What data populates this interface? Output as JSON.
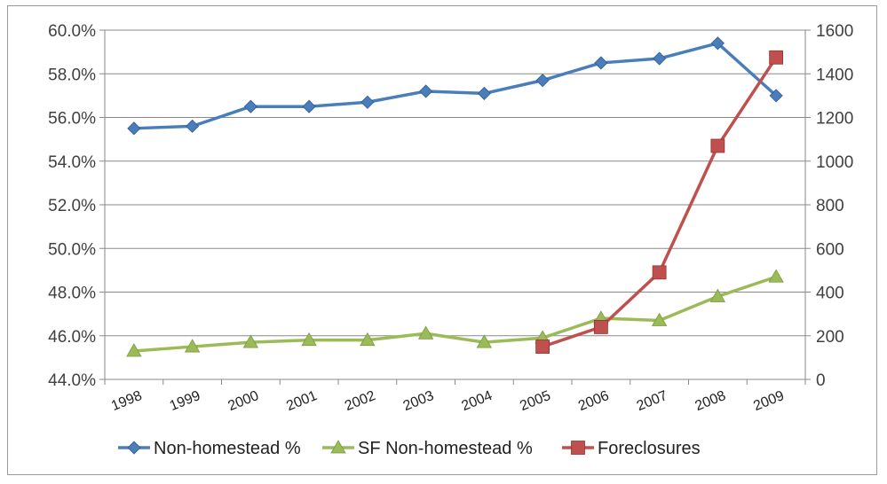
{
  "chart_data": {
    "type": "line",
    "categories": [
      "1998",
      "1999",
      "2000",
      "2001",
      "2002",
      "2003",
      "2004",
      "2005",
      "2006",
      "2007",
      "2008",
      "2009"
    ],
    "y_left": {
      "ylim": [
        44.0,
        60.0
      ],
      "ticks": [
        "44.0%",
        "46.0%",
        "48.0%",
        "50.0%",
        "52.0%",
        "54.0%",
        "56.0%",
        "58.0%",
        "60.0%"
      ]
    },
    "y_right": {
      "ylim": [
        0,
        1600
      ],
      "ticks": [
        "0",
        "200",
        "400",
        "600",
        "800",
        "1000",
        "1200",
        "1400",
        "1600"
      ]
    },
    "grid": true,
    "legend_position": "bottom",
    "series": [
      {
        "name": "Non-homestead %",
        "axis": "left",
        "color": "#4a7ebb",
        "marker": "diamond",
        "values": [
          55.5,
          55.6,
          56.5,
          56.5,
          56.7,
          57.2,
          57.1,
          57.7,
          58.5,
          58.7,
          59.4,
          57.0
        ]
      },
      {
        "name": "SF Non-homestead %",
        "axis": "left",
        "color": "#9bbb59",
        "marker": "triangle",
        "values": [
          45.3,
          45.5,
          45.7,
          45.8,
          45.8,
          46.1,
          45.7,
          45.9,
          46.8,
          46.7,
          47.8,
          48.7
        ]
      },
      {
        "name": "Foreclosures",
        "axis": "right",
        "color": "#c0504d",
        "marker": "square",
        "values": [
          null,
          null,
          null,
          null,
          null,
          null,
          null,
          150,
          240,
          490,
          1070,
          1475
        ]
      }
    ]
  }
}
